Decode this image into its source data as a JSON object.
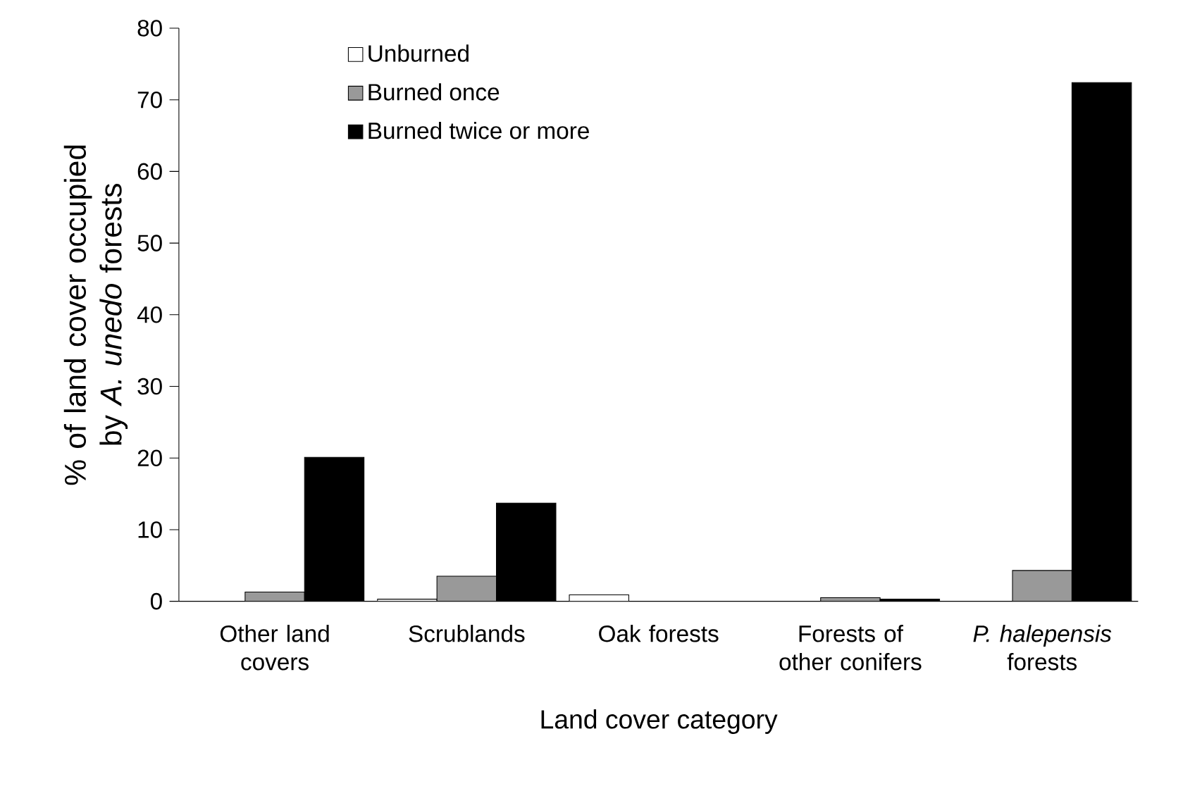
{
  "chart_data": {
    "type": "bar",
    "xlabel": "Land cover category",
    "ylabel": "% of land cover occupied by *A. unedo* forests",
    "categories": [
      "Other land covers",
      "Scrublands",
      "Oak forests",
      "Forests of other conifers",
      "*P. halepensis* forests"
    ],
    "series": [
      {
        "name": "Unburned",
        "color": "#ffffff",
        "values": [
          0,
          0.3,
          0.9,
          0,
          0
        ]
      },
      {
        "name": "Burned once",
        "color": "#999999",
        "values": [
          1.3,
          3.5,
          0,
          0.5,
          4.3
        ]
      },
      {
        "name": "Burned twice or more",
        "color": "#000000",
        "values": [
          20.1,
          13.7,
          0,
          0.3,
          72.4
        ]
      }
    ],
    "ylim": [
      0,
      80
    ],
    "yticks": [
      0,
      10,
      20,
      30,
      40,
      50,
      60,
      70,
      80
    ],
    "grid": false,
    "legend": "top left"
  }
}
